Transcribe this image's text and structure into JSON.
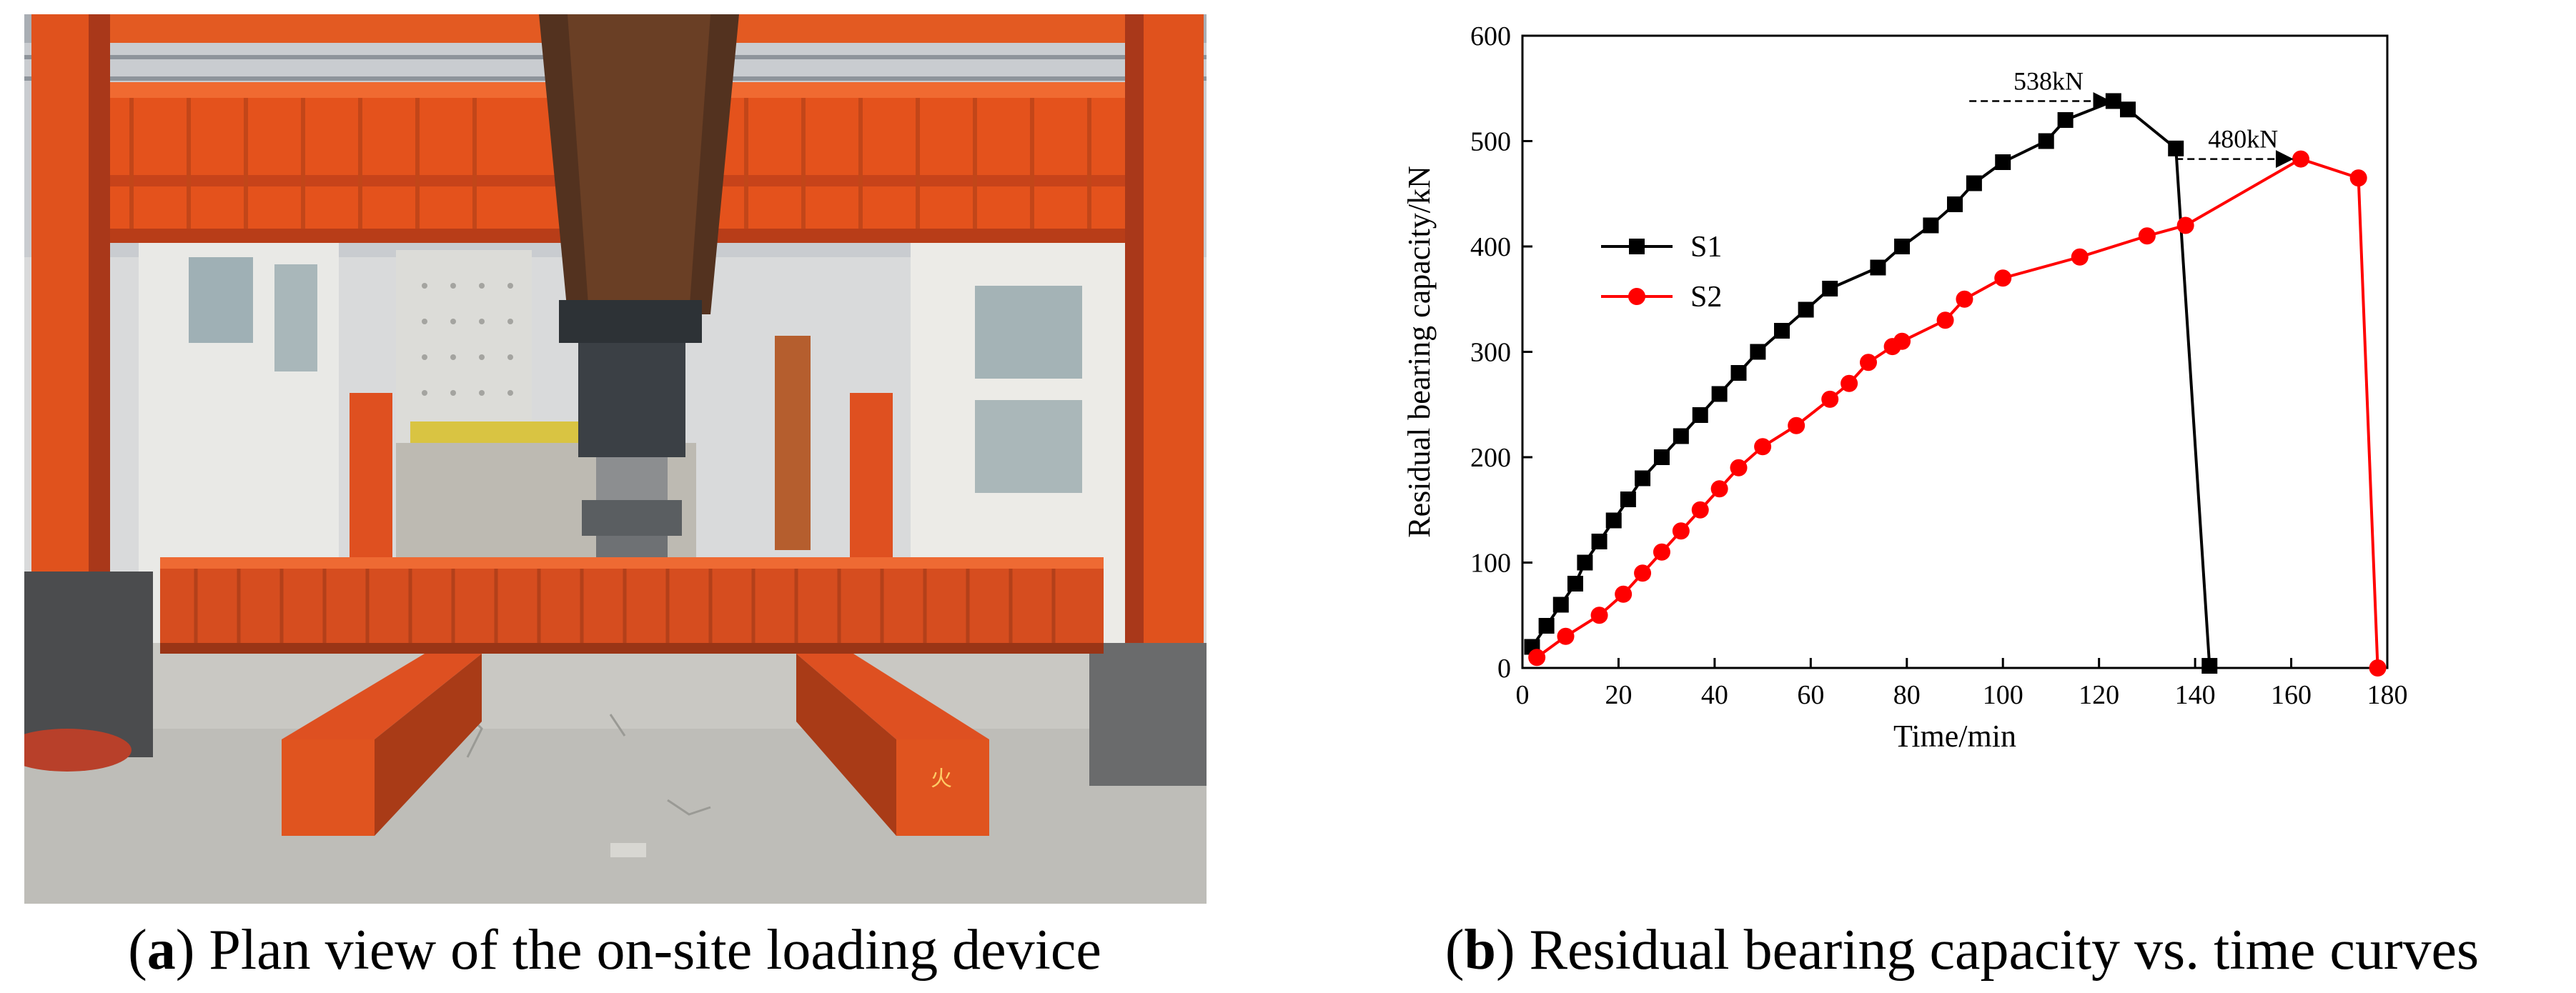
{
  "panel_a": {
    "caption_letter": "a",
    "caption_text": "Plan view of the on-site loading device",
    "sign_text": "火"
  },
  "panel_b": {
    "caption_letter": "b",
    "caption_text": "Residual bearing capacity vs. time curves"
  },
  "chart_data": {
    "type": "line",
    "xlabel": "Time/min",
    "ylabel": "Residual bearing capacity/kN",
    "xlim": [
      0,
      180
    ],
    "ylim": [
      0,
      600
    ],
    "xticks": [
      0,
      20,
      40,
      60,
      80,
      100,
      120,
      140,
      160,
      180
    ],
    "yticks": [
      0,
      100,
      200,
      300,
      400,
      500,
      600
    ],
    "legend_position": "upper-left",
    "series": [
      {
        "name": "S1",
        "color": "#000000",
        "marker": "square",
        "x": [
          2,
          5,
          8,
          11,
          13,
          16,
          19,
          22,
          25,
          29,
          33,
          37,
          41,
          45,
          49,
          54,
          59,
          64,
          74,
          79,
          85,
          90,
          94,
          100,
          109,
          113,
          123,
          126,
          136,
          143
        ],
        "y": [
          20,
          40,
          60,
          80,
          100,
          120,
          140,
          160,
          180,
          200,
          220,
          240,
          260,
          280,
          300,
          320,
          340,
          360,
          380,
          400,
          420,
          440,
          460,
          480,
          500,
          520,
          538,
          530,
          493,
          2
        ]
      },
      {
        "name": "S2",
        "color": "#ff0000",
        "marker": "circle",
        "x": [
          3,
          9,
          16,
          21,
          25,
          29,
          33,
          37,
          41,
          45,
          50,
          57,
          64,
          68,
          72,
          77,
          79,
          88,
          92,
          100,
          116,
          130,
          138,
          162,
          174,
          178
        ],
        "y": [
          10,
          30,
          50,
          70,
          90,
          110,
          130,
          150,
          170,
          190,
          210,
          230,
          255,
          270,
          290,
          305,
          310,
          330,
          350,
          370,
          390,
          410,
          420,
          483,
          465,
          0
        ]
      }
    ],
    "annotations": [
      {
        "text": "538kN",
        "x": 123,
        "y": 538,
        "arrow_from_x": 93,
        "arrow_to_x": 123
      },
      {
        "text": "480kN",
        "x": 162,
        "y": 483,
        "arrow_from_x": 136,
        "arrow_to_x": 161
      }
    ]
  }
}
